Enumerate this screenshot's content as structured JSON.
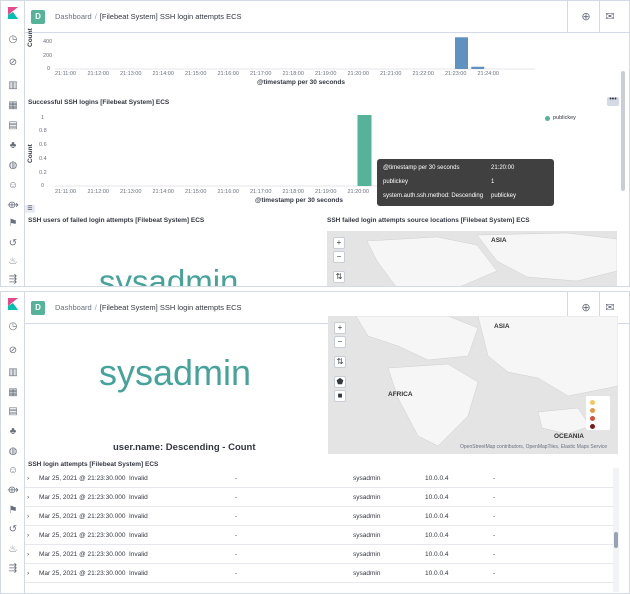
{
  "app": {
    "space_initial": "D",
    "breadcrumb_root": "Dashboard",
    "breadcrumb_sep": "/",
    "dashboard_title": "[Filebeat System] SSH login attempts ECS"
  },
  "top_chart": {
    "type": "bar",
    "ylabel": "Count",
    "xlabel": "@timestamp per 30 seconds",
    "y_ticks": [
      "400",
      "200",
      "0"
    ],
    "categories": [
      "21:11:00",
      "21:12:00",
      "21:13:00",
      "21:14:00",
      "21:15:00",
      "21:16:00",
      "21:17:00",
      "21:18:00",
      "21:19:00",
      "21:20:00",
      "21:21:00",
      "21:22:00",
      "21:23:00",
      "21:24:00"
    ],
    "bars": [
      {
        "x": "21:23:00",
        "value": 560
      },
      {
        "x": "21:23:30",
        "value": 40
      }
    ],
    "ylim": [
      0,
      600
    ],
    "color": "#6092c0"
  },
  "success_chart": {
    "type": "bar",
    "title": "Successful SSH logins [Filebeat System] ECS",
    "ylabel": "Count",
    "xlabel": "@timestamp per 30 seconds",
    "y_ticks": [
      "1",
      "0.8",
      "0.6",
      "0.4",
      "0.2",
      "0"
    ],
    "categories": [
      "21:11:00",
      "21:12:00",
      "21:13:00",
      "21:14:00",
      "21:15:00",
      "21:16:00",
      "21:17:00",
      "21:18:00",
      "21:19:00",
      "21:20:00",
      "21:21:00",
      "21:22:00",
      "21:23:00",
      "21:24:00"
    ],
    "bars": [
      {
        "x": "21:20:00",
        "value": 1
      }
    ],
    "ylim": [
      0,
      1
    ],
    "color": "#54b399",
    "legend_label": "publickey",
    "tooltip": {
      "row1_label": "@timestamp per 30 seconds",
      "row1_value": "21:20:00",
      "row2_label": "publickey",
      "row2_value": "1",
      "row3_label": "system.auth.ssh.method: Descending",
      "row3_value": "publickey"
    }
  },
  "users_panel": {
    "title": "SSH users of failed login attempts [Filebeat System] ECS",
    "tag": "sysadmin",
    "footer": "user.name: Descending - Count"
  },
  "map_panel": {
    "title": "SSH failed login attempts source locations [Filebeat System] ECS",
    "label_asia": "ASIA",
    "label_africa": "AFRICA",
    "label_oceania": "OCEANIA",
    "attribution": "OpenStreetMap contributors, OpenMapTiles, Elastic Maps Service",
    "zoom_in": "+",
    "zoom_out": "−"
  },
  "log_table": {
    "title": "SSH login attempts [Filebeat System] ECS",
    "rows": [
      {
        "time": "Mar 25, 2021 @ 21:23:30.000",
        "status": "Invalid",
        "dash": "-",
        "user": "sysadmin",
        "ip": "10.0.0.4",
        "dash2": "-"
      },
      {
        "time": "Mar 25, 2021 @ 21:23:30.000",
        "status": "Invalid",
        "dash": "-",
        "user": "sysadmin",
        "ip": "10.0.0.4",
        "dash2": "-"
      },
      {
        "time": "Mar 25, 2021 @ 21:23:30.000",
        "status": "Invalid",
        "dash": "-",
        "user": "sysadmin",
        "ip": "10.0.0.4",
        "dash2": "-"
      },
      {
        "time": "Mar 25, 2021 @ 21:23:30.000",
        "status": "Invalid",
        "dash": "-",
        "user": "sysadmin",
        "ip": "10.0.0.4",
        "dash2": "-"
      },
      {
        "time": "Mar 25, 2021 @ 21:23:30.000",
        "status": "Invalid",
        "dash": "-",
        "user": "sysadmin",
        "ip": "10.0.0.4",
        "dash2": "-"
      },
      {
        "time": "Mar 25, 2021 @ 21:23:30.000",
        "status": "Invalid",
        "dash": "-",
        "user": "sysadmin",
        "ip": "10.0.0.4",
        "dash2": "-"
      }
    ]
  }
}
